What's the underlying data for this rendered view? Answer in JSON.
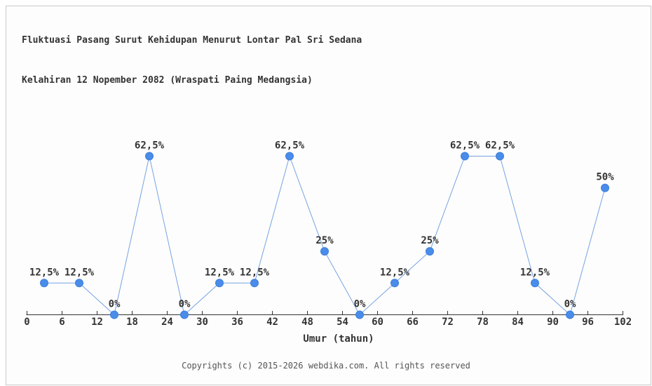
{
  "page": {
    "background_color": "#ffffff",
    "panel_border_color": "#c9c9c9",
    "panel_background_color": "#fdfdfd"
  },
  "chart_data": {
    "type": "line",
    "title_line1": "Fluktuasi Pasang Surut Kehidupan Menurut Lontar Pal Sri Sedana",
    "title_line2": "Kelahiran 12 Nopember 2082 (Wraspati Paing Medangsia)",
    "xlabel": "Umur (tahun)",
    "ylabel": "",
    "x": [
      3,
      9,
      15,
      21,
      27,
      33,
      39,
      45,
      51,
      57,
      63,
      69,
      75,
      81,
      87,
      93,
      99
    ],
    "values": [
      12.5,
      12.5,
      0,
      62.5,
      0,
      12.5,
      12.5,
      62.5,
      25,
      0,
      12.5,
      25,
      62.5,
      62.5,
      12.5,
      0,
      50
    ],
    "point_labels": [
      "12,5%",
      "12,5%",
      "0%",
      "62,5%",
      "0%",
      "12,5%",
      "12,5%",
      "62,5%",
      "25%",
      "0%",
      "12,5%",
      "25%",
      "62,5%",
      "62,5%",
      "12,5%",
      "0%",
      "50%"
    ],
    "x_ticks": [
      0,
      6,
      12,
      18,
      24,
      30,
      36,
      42,
      48,
      54,
      60,
      66,
      72,
      78,
      84,
      90,
      96,
      102
    ],
    "xlim": [
      0,
      102
    ],
    "ylim": [
      0,
      70
    ],
    "grid": false,
    "legend": "none",
    "line_color": "#76a3e3",
    "marker_color": "#4a8ce9",
    "marker_edge_color": "#3d7fdb",
    "axis_color": "#333333",
    "text_color": "#333333"
  },
  "footer": {
    "copyright": "Copyrights (c) 2015-2026 webdika.com. All rights reserved"
  }
}
